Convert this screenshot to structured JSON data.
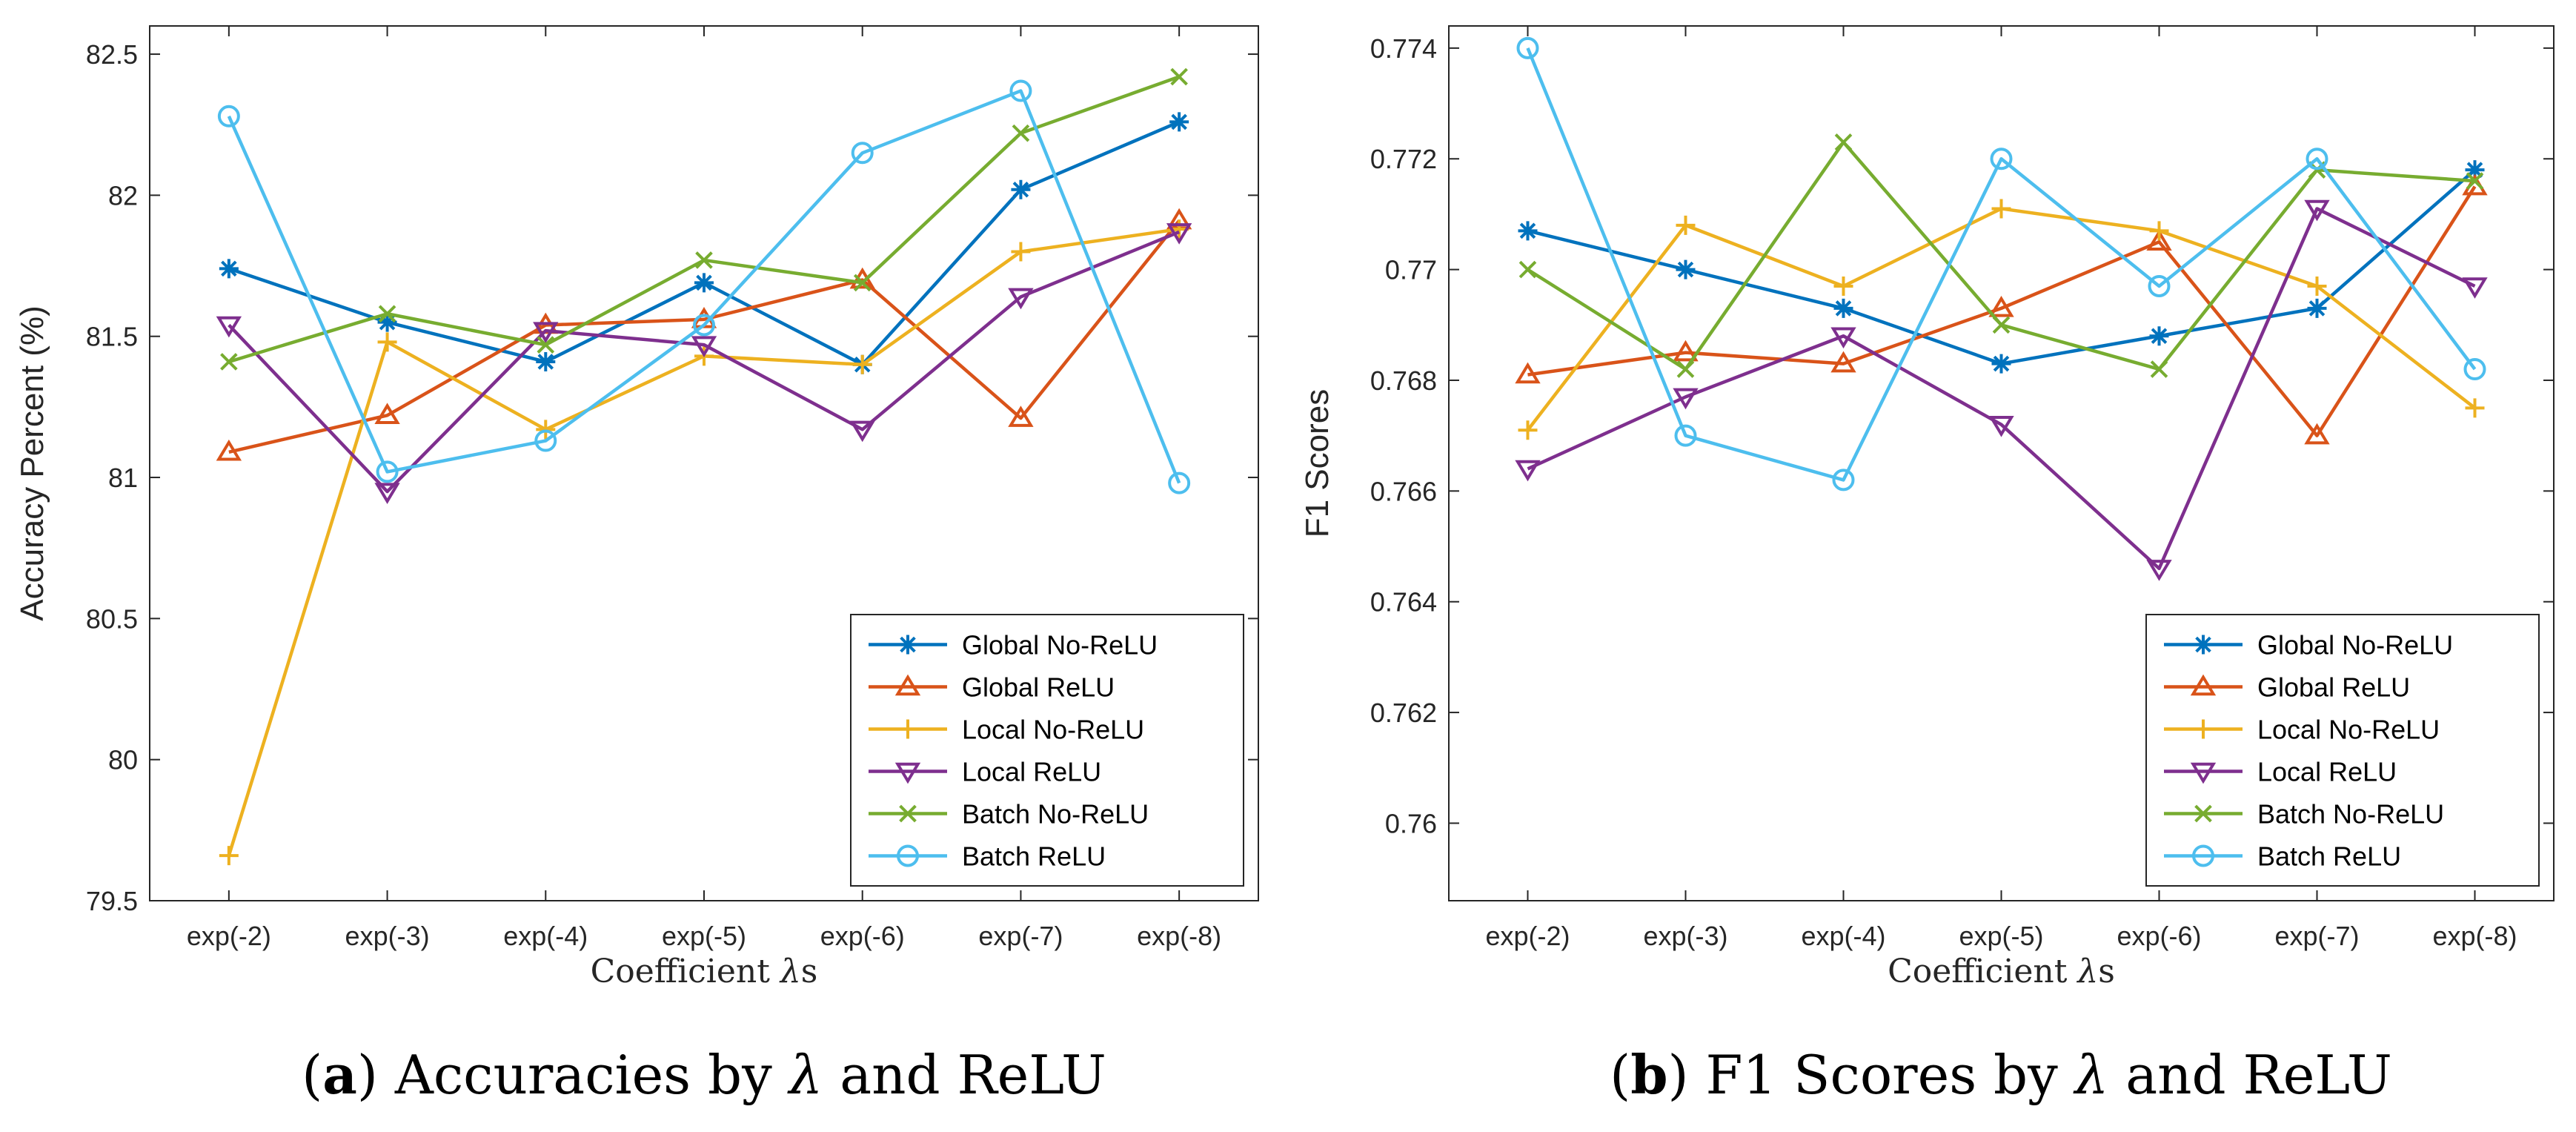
{
  "chart_data": [
    {
      "type": "line",
      "caption": {
        "letter": "a",
        "text_before": "Accuracies by",
        "symbol": "λ",
        "text_after": "and ReLU"
      },
      "xlabel": {
        "text": "Coefficient",
        "symbol": "λ",
        "suffix": "s"
      },
      "ylabel": "Accuracy Percent (%)",
      "categories": [
        "exp(-2)",
        "exp(-3)",
        "exp(-4)",
        "exp(-5)",
        "exp(-6)",
        "exp(-7)",
        "exp(-8)"
      ],
      "ylim": [
        79.5,
        82.6
      ],
      "yticks": [
        79.5,
        80,
        80.5,
        81,
        81.5,
        82,
        82.5
      ],
      "ytick_labels": [
        "79.5",
        "80",
        "80.5",
        "81",
        "81.5",
        "82",
        "82.5"
      ],
      "legend_position": "bottom-right",
      "series": [
        {
          "name": "Global No-ReLU",
          "color": "#0072BD",
          "marker": "asterisk",
          "values": [
            81.74,
            81.55,
            81.41,
            81.69,
            81.4,
            82.02,
            82.26
          ]
        },
        {
          "name": "Global ReLU",
          "color": "#D95319",
          "marker": "triangle-up",
          "values": [
            81.09,
            81.22,
            81.54,
            81.56,
            81.7,
            81.21,
            81.91
          ]
        },
        {
          "name": "Local No-ReLU",
          "color": "#EDB120",
          "marker": "plus",
          "values": [
            79.66,
            81.48,
            81.17,
            81.43,
            81.4,
            81.8,
            81.88
          ]
        },
        {
          "name": "Local ReLU",
          "color": "#7E2F8E",
          "marker": "triangle-down",
          "values": [
            81.54,
            80.95,
            81.52,
            81.47,
            81.17,
            81.64,
            81.87
          ]
        },
        {
          "name": "Batch No-ReLU",
          "color": "#77AC30",
          "marker": "x",
          "values": [
            81.41,
            81.58,
            81.47,
            81.77,
            81.69,
            82.22,
            82.42
          ]
        },
        {
          "name": "Batch ReLU",
          "color": "#4DBEEE",
          "marker": "circle",
          "values": [
            82.28,
            81.02,
            81.13,
            81.54,
            82.15,
            82.37,
            80.98
          ]
        }
      ]
    },
    {
      "type": "line",
      "caption": {
        "letter": "b",
        "text_before": "F1 Scores by",
        "symbol": "λ",
        "text_after": "and ReLU"
      },
      "xlabel": {
        "text": "Coefficient",
        "symbol": "λ",
        "suffix": "s"
      },
      "ylabel": "F1 Scores",
      "categories": [
        "exp(-2)",
        "exp(-3)",
        "exp(-4)",
        "exp(-5)",
        "exp(-6)",
        "exp(-7)",
        "exp(-8)"
      ],
      "ylim": [
        0.7586,
        0.7744
      ],
      "yticks": [
        0.76,
        0.762,
        0.764,
        0.766,
        0.768,
        0.77,
        0.772,
        0.774
      ],
      "ytick_labels": [
        "0.76",
        "0.762",
        "0.764",
        "0.766",
        "0.768",
        "0.77",
        "0.772",
        "0.774"
      ],
      "legend_position": "bottom-right",
      "series": [
        {
          "name": "Global No-ReLU",
          "color": "#0072BD",
          "marker": "asterisk",
          "values": [
            0.7707,
            0.77,
            0.7693,
            0.7683,
            0.7688,
            0.7693,
            0.7718
          ]
        },
        {
          "name": "Global ReLU",
          "color": "#D95319",
          "marker": "triangle-up",
          "values": [
            0.7681,
            0.7685,
            0.7683,
            0.7693,
            0.7705,
            0.767,
            0.7715
          ]
        },
        {
          "name": "Local No-ReLU",
          "color": "#EDB120",
          "marker": "plus",
          "values": [
            0.7671,
            0.7708,
            0.7697,
            0.7711,
            0.7707,
            0.7697,
            0.7675
          ]
        },
        {
          "name": "Local ReLU",
          "color": "#7E2F8E",
          "marker": "triangle-down",
          "values": [
            0.7664,
            0.7677,
            0.7688,
            0.7672,
            0.7646,
            0.7711,
            0.7697
          ]
        },
        {
          "name": "Batch No-ReLU",
          "color": "#77AC30",
          "marker": "x",
          "values": [
            0.77,
            0.7682,
            0.7723,
            0.769,
            0.7682,
            0.7718,
            0.7716
          ]
        },
        {
          "name": "Batch ReLU",
          "color": "#4DBEEE",
          "marker": "circle",
          "values": [
            0.774,
            0.767,
            0.7662,
            0.772,
            0.7697,
            0.772,
            0.7682
          ]
        }
      ]
    }
  ]
}
